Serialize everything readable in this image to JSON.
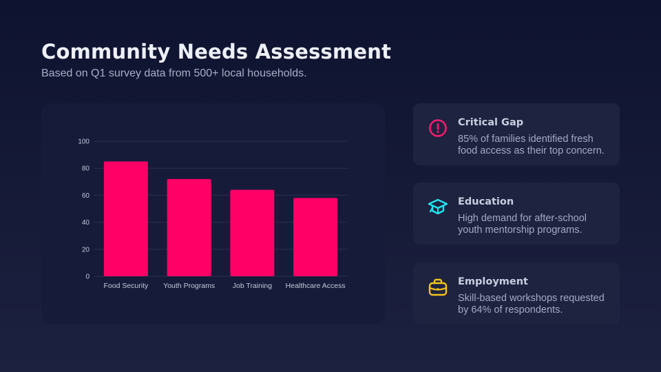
{
  "header": {
    "title": "Community Needs Assessment",
    "subtitle": "Based on Q1 survey data from 500+ local households."
  },
  "colors": {
    "bar": "#ff0066",
    "critical": "#ff1a6e",
    "education": "#22e3f0",
    "employment": "#f5c518",
    "grid": "#2a3152",
    "tick_label": "#c5c9d8"
  },
  "chart_data": {
    "type": "bar",
    "title": "",
    "categories": [
      "Food Security",
      "Youth Programs",
      "Job Training",
      "Healthcare Access"
    ],
    "values": [
      85,
      72,
      64,
      58
    ],
    "xlabel": "",
    "ylabel": "",
    "ylim": [
      0,
      100
    ],
    "yticks": [
      0,
      20,
      40,
      60,
      80,
      100
    ],
    "grid": true,
    "legend": "none",
    "bar_color": "#ff0066"
  },
  "insights": [
    {
      "icon": "alert-circle-icon",
      "heading": "Critical Gap",
      "body": "85% of families identified fresh food access as their top concern."
    },
    {
      "icon": "graduation-cap-icon",
      "heading": "Education",
      "body": "High demand for after-school youth mentorship programs."
    },
    {
      "icon": "briefcase-icon",
      "heading": "Employment",
      "body": "Skill-based workshops requested by 64% of respondents."
    }
  ]
}
